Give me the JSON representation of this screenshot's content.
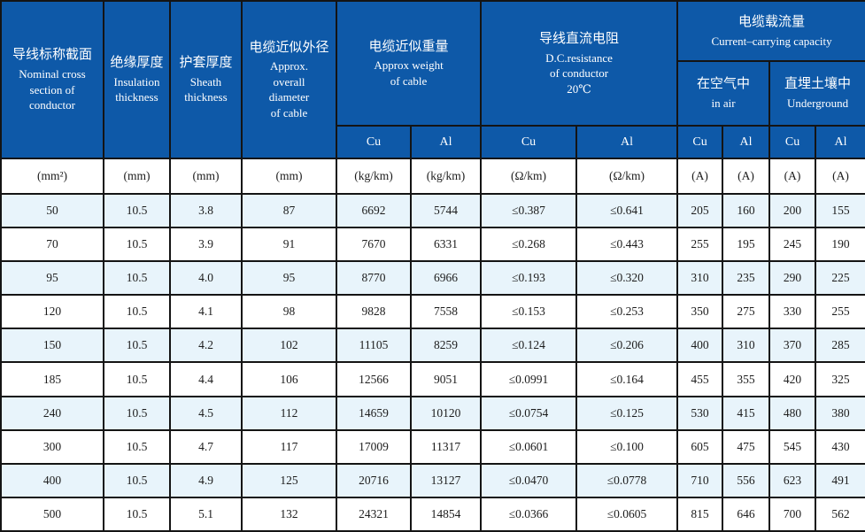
{
  "colors": {
    "header_bg": "#0e59a8",
    "header_text": "#ffffff",
    "alt_row_bg": "#e8f4fb",
    "row_bg": "#ffffff",
    "border": "#141414",
    "body_text": "#1c1c1c"
  },
  "header": {
    "nominal_cross_section": {
      "zh": "导线标称截面",
      "en": "Nominal cross\nsection of\nconductor"
    },
    "insulation_thickness": {
      "zh": "绝缘厚度",
      "en": "Insulation\nthickness"
    },
    "sheath_thickness": {
      "zh": "护套厚度",
      "en": "Sheath\nthickness"
    },
    "overall_diameter": {
      "zh": "电缆近似外径",
      "en": "Approx.\noverall\ndiameter\nof cable"
    },
    "approx_weight": {
      "zh": "电缆近似重量",
      "en": "Approx weight\nof cable"
    },
    "dc_resistance": {
      "zh": "导线直流电阻",
      "en": "D.C.resistance\nof conductor\n20℃"
    },
    "capacity": {
      "zh": "电缆载流量",
      "en": "Current–carrying capacity"
    },
    "in_air": {
      "zh": "在空气中",
      "en": "in air"
    },
    "underground": {
      "zh": "直埋土壤中",
      "en": "Underground"
    }
  },
  "materials": [
    "Cu",
    "Al",
    "Cu",
    "Al",
    "Cu",
    "Al",
    "Cu",
    "Al"
  ],
  "units": [
    "(mm²)",
    "(mm)",
    "(mm)",
    "(mm)",
    "(kg/km)",
    "(kg/km)",
    "(Ω/km)",
    "(Ω/km)",
    "(A)",
    "(A)",
    "(A)",
    "(A)"
  ],
  "columns": [
    "nominal-section",
    "insulation-thickness",
    "sheath-thickness",
    "overall-diameter",
    "weight-cu",
    "weight-al",
    "resistance-cu",
    "resistance-al",
    "air-cu",
    "air-al",
    "underground-cu",
    "underground-al"
  ],
  "rows": [
    [
      "50",
      "10.5",
      "3.8",
      "87",
      "6692",
      "5744",
      "≤0.387",
      "≤0.641",
      "205",
      "160",
      "200",
      "155"
    ],
    [
      "70",
      "10.5",
      "3.9",
      "91",
      "7670",
      "6331",
      "≤0.268",
      "≤0.443",
      "255",
      "195",
      "245",
      "190"
    ],
    [
      "95",
      "10.5",
      "4.0",
      "95",
      "8770",
      "6966",
      "≤0.193",
      "≤0.320",
      "310",
      "235",
      "290",
      "225"
    ],
    [
      "120",
      "10.5",
      "4.1",
      "98",
      "9828",
      "7558",
      "≤0.153",
      "≤0.253",
      "350",
      "275",
      "330",
      "255"
    ],
    [
      "150",
      "10.5",
      "4.2",
      "102",
      "11105",
      "8259",
      "≤0.124",
      "≤0.206",
      "400",
      "310",
      "370",
      "285"
    ],
    [
      "185",
      "10.5",
      "4.4",
      "106",
      "12566",
      "9051",
      "≤0.0991",
      "≤0.164",
      "455",
      "355",
      "420",
      "325"
    ],
    [
      "240",
      "10.5",
      "4.5",
      "112",
      "14659",
      "10120",
      "≤0.0754",
      "≤0.125",
      "530",
      "415",
      "480",
      "380"
    ],
    [
      "300",
      "10.5",
      "4.7",
      "117",
      "17009",
      "11317",
      "≤0.0601",
      "≤0.100",
      "605",
      "475",
      "545",
      "430"
    ],
    [
      "400",
      "10.5",
      "4.9",
      "125",
      "20716",
      "13127",
      "≤0.0470",
      "≤0.0778",
      "710",
      "556",
      "623",
      "491"
    ],
    [
      "500",
      "10.5",
      "5.1",
      "132",
      "24321",
      "14854",
      "≤0.0366",
      "≤0.0605",
      "815",
      "646",
      "700",
      "562"
    ]
  ]
}
